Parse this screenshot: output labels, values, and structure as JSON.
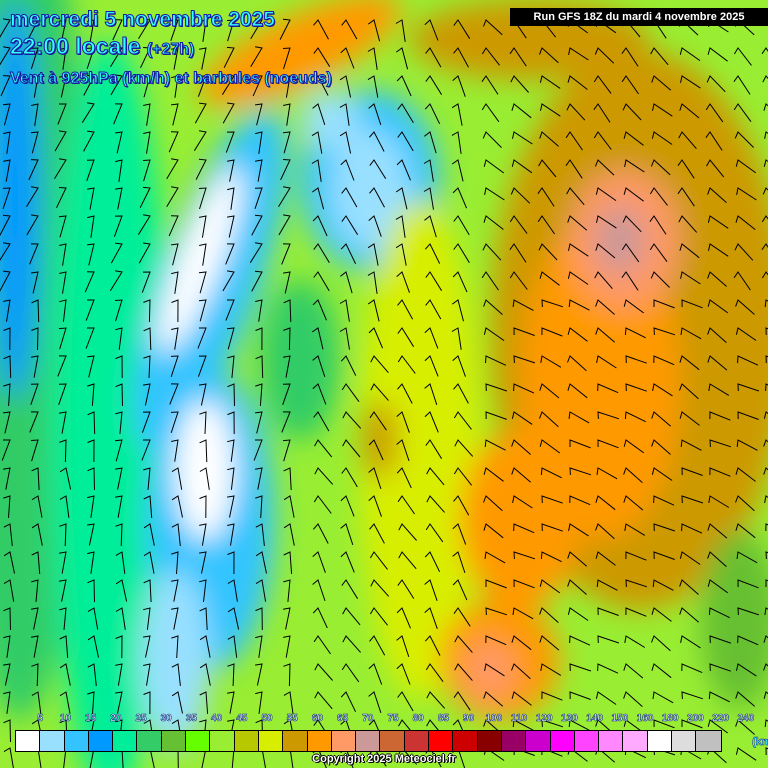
{
  "header": {
    "date": "mercredi 5 novembre 2025",
    "time": "22:00 locale",
    "offset": "(+27h)",
    "field": "Vent à 925hPa (km/h) et barbules (noeuds)",
    "run": "Run GFS 18Z du mardi 4 novembre 2025"
  },
  "legend": {
    "labels": [
      "5",
      "10",
      "15",
      "20",
      "25",
      "30",
      "35",
      "40",
      "45",
      "50",
      "55",
      "60",
      "65",
      "70",
      "75",
      "80",
      "85",
      "90",
      "100",
      "110",
      "120",
      "130",
      "140",
      "150",
      "160",
      "180",
      "200",
      "220",
      "240"
    ],
    "colors": [
      "#ffffff",
      "#99e0ff",
      "#33c4ff",
      "#0099ff",
      "#00ee99",
      "#33cc66",
      "#66c033",
      "#66ff00",
      "#99ee33",
      "#b8c800",
      "#d8ee00",
      "#cc9900",
      "#ff9900",
      "#ff9966",
      "#cc9999",
      "#cc6633",
      "#cc3333",
      "#ff0000",
      "#cc0000",
      "#880000",
      "#990066",
      "#cc00cc",
      "#ff00ff",
      "#ff44ff",
      "#ff88ff",
      "#ffaaff",
      "#ffffff",
      "#dddddd",
      "#c0c0c0"
    ],
    "unit": "(km/h)"
  },
  "copyright": "Copyright 2025 Meteociel.fr"
}
